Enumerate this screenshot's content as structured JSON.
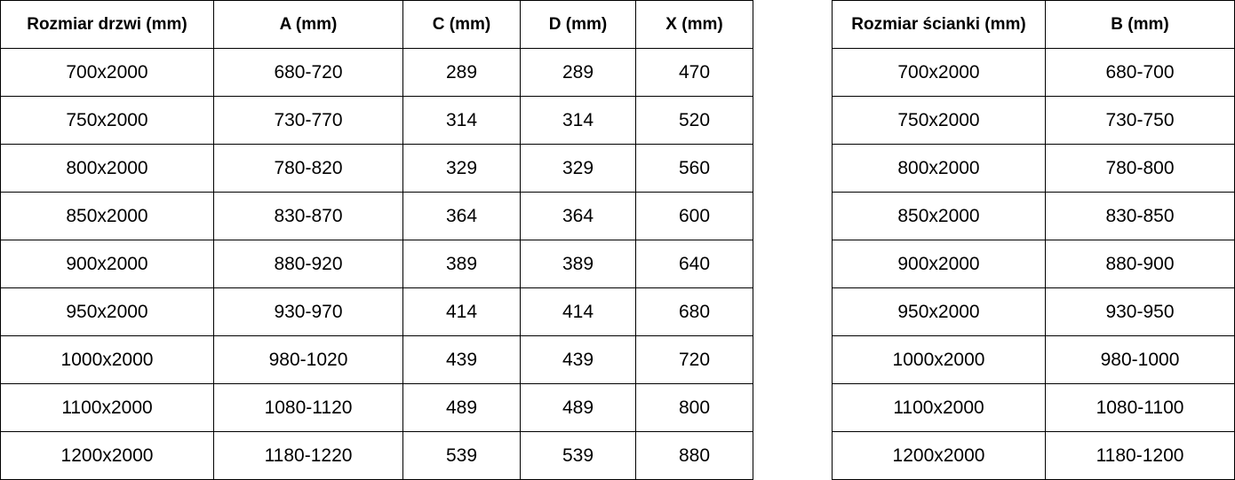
{
  "doors_table": {
    "headers": [
      "Rozmiar drzwi (mm)",
      "A (mm)",
      "C (mm)",
      "D (mm)",
      "X (mm)"
    ],
    "rows": [
      [
        "700x2000",
        "680-720",
        "289",
        "289",
        "470"
      ],
      [
        "750x2000",
        "730-770",
        "314",
        "314",
        "520"
      ],
      [
        "800x2000",
        "780-820",
        "329",
        "329",
        "560"
      ],
      [
        "850x2000",
        "830-870",
        "364",
        "364",
        "600"
      ],
      [
        "900x2000",
        "880-920",
        "389",
        "389",
        "640"
      ],
      [
        "950x2000",
        "930-970",
        "414",
        "414",
        "680"
      ],
      [
        "1000x2000",
        "980-1020",
        "439",
        "439",
        "720"
      ],
      [
        "1100x2000",
        "1080-1120",
        "489",
        "489",
        "800"
      ],
      [
        "1200x2000",
        "1180-1220",
        "539",
        "539",
        "880"
      ]
    ]
  },
  "wall_table": {
    "headers": [
      "Rozmiar ścianki (mm)",
      "B (mm)"
    ],
    "rows": [
      [
        "700x2000",
        "680-700"
      ],
      [
        "750x2000",
        "730-750"
      ],
      [
        "800x2000",
        "780-800"
      ],
      [
        "850x2000",
        "830-850"
      ],
      [
        "900x2000",
        "880-900"
      ],
      [
        "950x2000",
        "930-950"
      ],
      [
        "1000x2000",
        "980-1000"
      ],
      [
        "1100x2000",
        "1080-1100"
      ],
      [
        "1200x2000",
        "1180-1200"
      ]
    ]
  }
}
